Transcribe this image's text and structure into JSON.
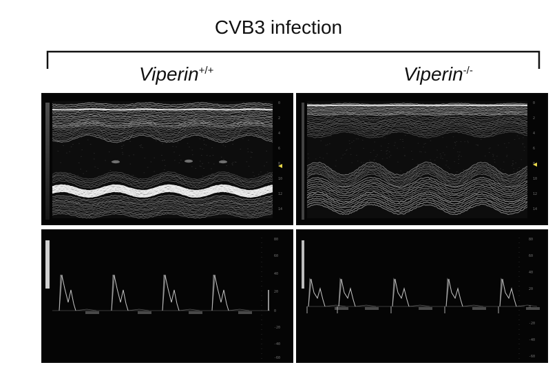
{
  "figure": {
    "title": "CVB3 infection",
    "groups": [
      {
        "name": "Viperin",
        "superscript": "+/+"
      },
      {
        "name": "Viperin",
        "superscript": "-/-"
      }
    ]
  },
  "panels": {
    "mmode_wt": {
      "kind": "M-mode echocardiogram"
    },
    "mmode_ko": {
      "kind": "M-mode echocardiogram"
    },
    "doppler_wt": {
      "kind": "Pulsed-wave Doppler"
    },
    "doppler_ko": {
      "kind": "Pulsed-wave Doppler"
    }
  },
  "colors": {
    "background": "#ffffff",
    "panel": "#000000",
    "tissue": "#d8d8d8",
    "marker": "#e8d84a"
  }
}
